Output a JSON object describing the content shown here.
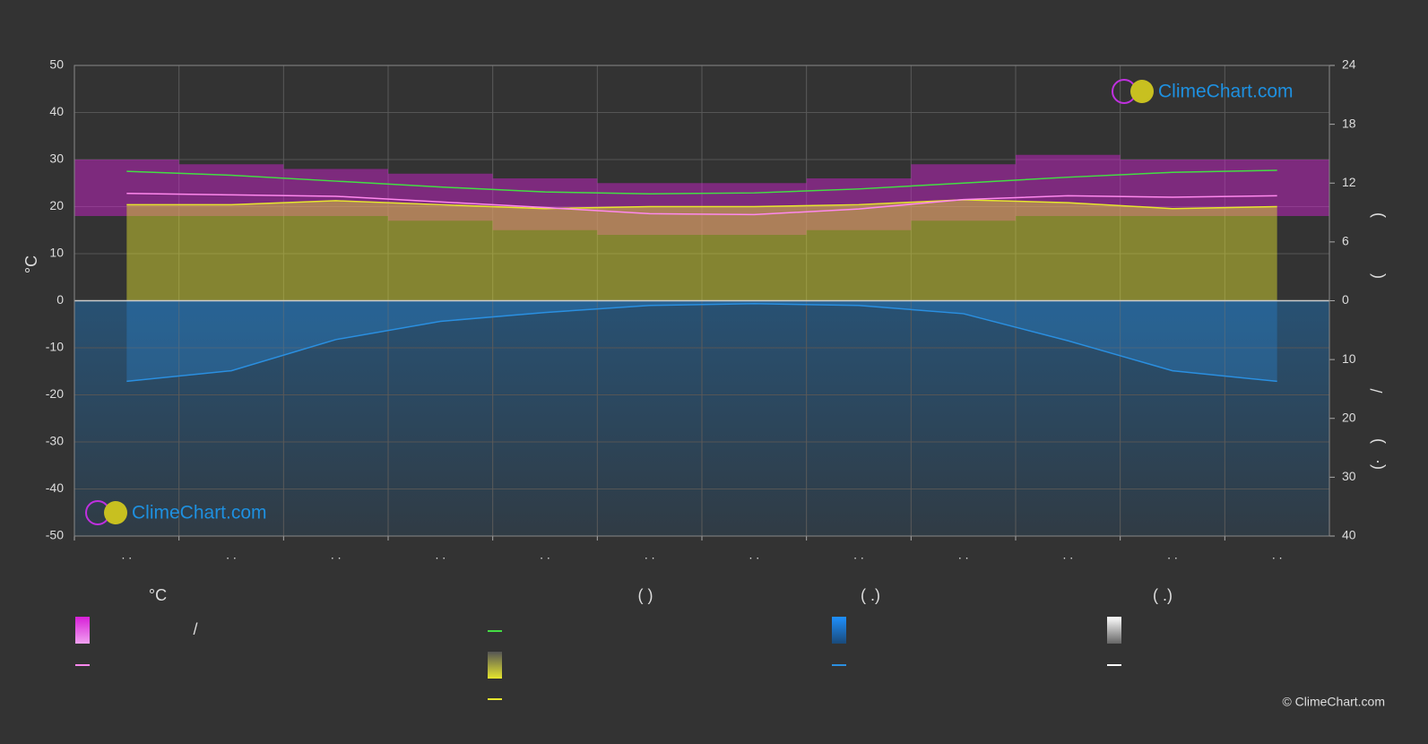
{
  "chart_data": {
    "type": "climate",
    "ylabel": "°C",
    "y2label_parts": [
      ")",
      "(",
      "/",
      ")",
      "(·"
    ],
    "categories": [
      ". .",
      ". .",
      ". .",
      ". .",
      ". .",
      ". .",
      ". .",
      ". .",
      ". .",
      ". .",
      ". .",
      ". ."
    ],
    "ylim": [
      -50,
      50
    ],
    "yticks": [
      50,
      40,
      30,
      20,
      10,
      0,
      -10,
      -20,
      -30,
      -40,
      -50
    ],
    "y2lim": [
      0,
      24
    ],
    "y2ticks": [
      0,
      6,
      12,
      18,
      24
    ],
    "y3lim": [
      0,
      40
    ],
    "y3ticks": [
      0,
      10,
      20,
      30,
      40
    ],
    "grid": true,
    "band": {
      "color": "#d81fd8",
      "upper": [
        30,
        29,
        28,
        27,
        26,
        25,
        25,
        26,
        29,
        31,
        30,
        30
      ],
      "lower": [
        18,
        18,
        18,
        17,
        15,
        14,
        14,
        15,
        17,
        18,
        18,
        18
      ]
    },
    "series": [
      {
        "color": "#44dd44",
        "axis": "y2",
        "values": [
          13.2,
          12.8,
          12.2,
          11.6,
          11.1,
          10.9,
          11.0,
          11.4,
          12.0,
          12.6,
          13.1,
          13.3
        ]
      },
      {
        "color": "#e6e62e",
        "axis": "y2",
        "fill": true,
        "values": [
          9.8,
          9.8,
          10.2,
          9.8,
          9.4,
          9.6,
          9.6,
          9.8,
          10.3,
          10.0,
          9.4,
          9.6
        ]
      },
      {
        "color": "#ff88ee",
        "axis": "y",
        "values": [
          22.8,
          22.5,
          22.2,
          21.0,
          19.8,
          18.5,
          18.3,
          19.5,
          21.5,
          22.3,
          22.0,
          22.3
        ]
      },
      {
        "color": "#2a8fe0",
        "axis": "y3",
        "values": [
          13.7,
          11.9,
          6.6,
          3.5,
          2.0,
          0.8,
          0.5,
          0.8,
          2.2,
          6.8,
          11.9,
          13.7
        ]
      }
    ],
    "legend": {
      "headings": [
        "°C",
        "(          )",
        "(   .)",
        "(   .)"
      ],
      "separator": "/"
    },
    "watermark": "ClimeChart.com",
    "copyright": "© ClimeChart.com"
  }
}
